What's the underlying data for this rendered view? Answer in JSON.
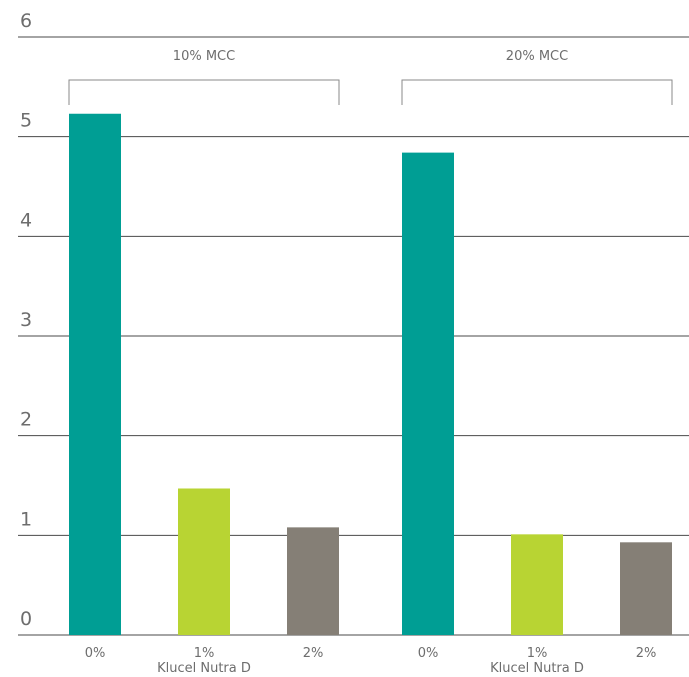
{
  "chart_data": {
    "type": "bar",
    "title": "",
    "xlabel": "",
    "ylabel": "",
    "ylim": [
      0,
      6
    ],
    "yticks": [
      "0",
      "1",
      "2",
      "3",
      "4",
      "5",
      "6"
    ],
    "grid": true,
    "groups": [
      {
        "label": "10% MCC",
        "sublabel": "Klucel Nutra D",
        "categories": [
          "0%",
          "1%",
          "2%"
        ],
        "values": [
          5.23,
          1.47,
          1.08
        ]
      },
      {
        "label": "20% MCC",
        "sublabel": "Klucel Nutra D",
        "categories": [
          "0%",
          "1%",
          "2%"
        ],
        "values": [
          4.84,
          1.01,
          0.93
        ]
      }
    ],
    "colors": [
      "#009e94",
      "#b8d433",
      "#857f76"
    ]
  }
}
